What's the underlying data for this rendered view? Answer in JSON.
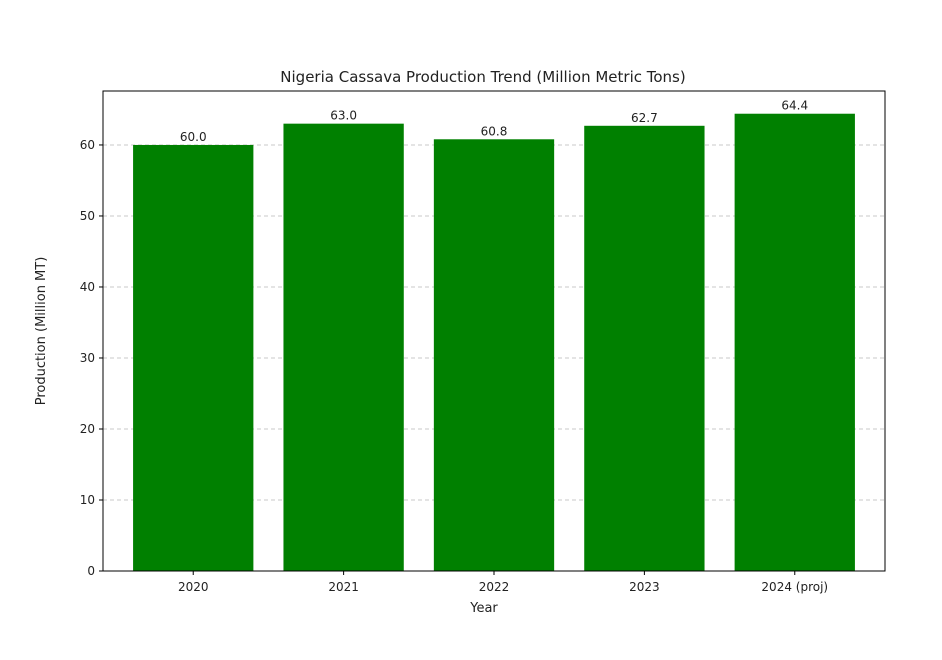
{
  "chart_data": {
    "type": "bar",
    "title": "Nigeria Cassava Production Trend (Million Metric Tons)",
    "xlabel": "Year",
    "ylabel": "Production (Million MT)",
    "categories": [
      "2020",
      "2021",
      "2022",
      "2023",
      "2024 (proj)"
    ],
    "values": [
      60.0,
      63.0,
      60.8,
      62.7,
      64.4
    ],
    "data_labels": [
      "60.0",
      "63.0",
      "60.8",
      "62.7",
      "64.4"
    ],
    "ylim": [
      0,
      67.6
    ],
    "yticks": [
      0,
      10,
      20,
      30,
      40,
      50,
      60
    ],
    "grid": "y-dashed",
    "legend": "none",
    "bar_color": "#008000"
  }
}
